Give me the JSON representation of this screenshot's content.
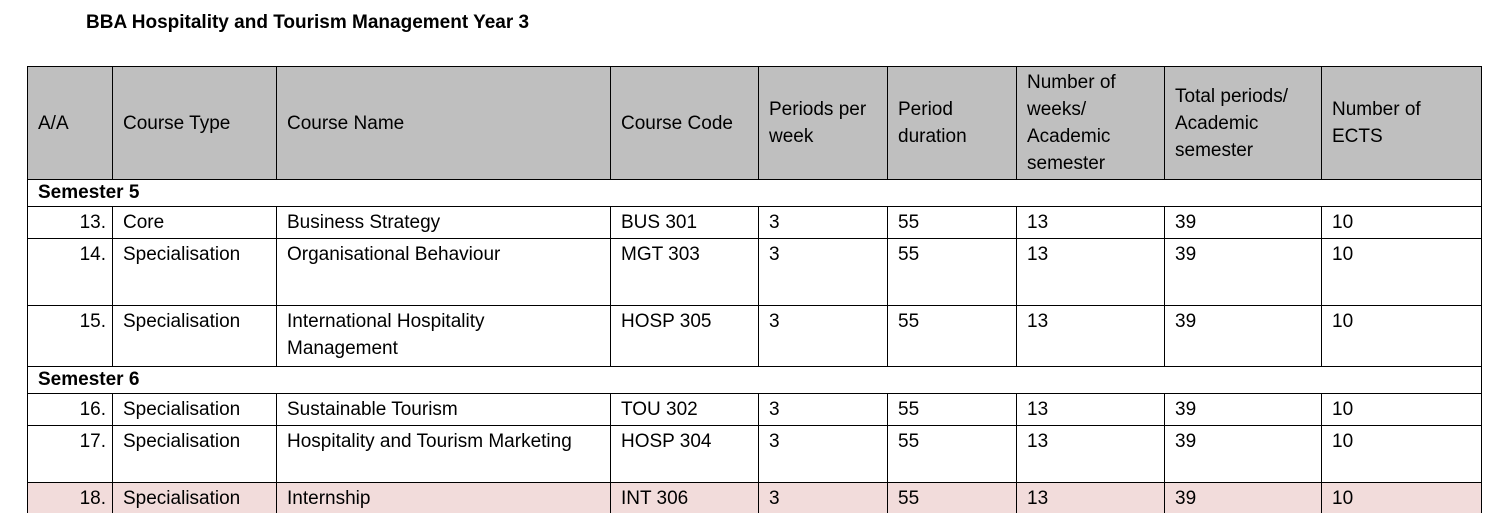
{
  "title": "BBA Hospitality and Tourism Management Year 3",
  "table": {
    "header": [
      "A/A",
      "Course Type",
      "Course Name",
      "Course Code",
      "Periods per week",
      "Period duration",
      "Number of weeks/ Academic semester",
      "Total periods/ Academic semester",
      "Number of ECTS"
    ],
    "sections": [
      {
        "label": "Semester 5",
        "rows": [
          [
            "13.",
            "Core",
            "Business Strategy",
            "BUS 301",
            "3",
            "55",
            "13",
            "39",
            "10"
          ],
          [
            "14.",
            "Specialisation",
            "Organisational Behaviour",
            "MGT 303",
            "3",
            "55",
            "13",
            "39",
            "10"
          ],
          [
            "15.",
            "Specialisation",
            "International Hospitality Management",
            "HOSP 305",
            "3",
            "55",
            "13",
            "39",
            "10"
          ]
        ]
      },
      {
        "label": "Semester 6",
        "rows": [
          [
            "16.",
            "Specialisation",
            "Sustainable Tourism",
            "TOU 302",
            "3",
            "55",
            "13",
            "39",
            "10"
          ],
          [
            "17.",
            "Specialisation",
            "Hospitality and Tourism Marketing",
            "HOSP 304",
            "3",
            "55",
            "13",
            "39",
            "10"
          ],
          [
            "18.",
            "Specialisation",
            "Internship",
            "INT 306",
            "3",
            "55",
            "13",
            "39",
            "10"
          ]
        ]
      }
    ]
  }
}
